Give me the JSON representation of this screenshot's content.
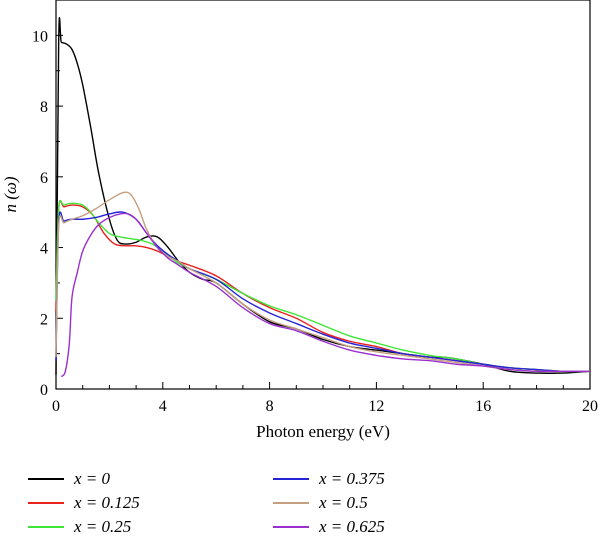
{
  "chart_data": {
    "type": "line",
    "xlabel": "Photon energy (eV)",
    "ylabel": "n (ω)",
    "xlim": [
      0,
      20
    ],
    "ylim": [
      0,
      11
    ],
    "xticks": [
      "0",
      "4",
      "8",
      "12",
      "16",
      "20"
    ],
    "yticks": [
      "0",
      "2",
      "4",
      "6",
      "8",
      "10"
    ],
    "legend_placement": "bottom",
    "series": [
      {
        "name": "x = 0",
        "color": "#000000",
        "x": [
          0,
          0.1,
          0.2,
          0.4,
          0.6,
          0.8,
          1.0,
          1.3,
          1.6,
          2.0,
          2.3,
          2.6,
          3.0,
          3.4,
          3.8,
          4.2,
          4.6,
          5.0,
          5.5,
          6.0,
          7.0,
          8.0,
          9.0,
          10,
          11,
          12,
          13,
          14,
          14.5,
          15,
          16,
          17,
          18,
          19,
          20
        ],
        "y": [
          0.4,
          9.8,
          9.8,
          9.75,
          9.6,
          9.2,
          8.6,
          7.4,
          6.1,
          4.8,
          4.2,
          4.1,
          4.15,
          4.3,
          4.3,
          4.0,
          3.6,
          3.3,
          3.1,
          3.0,
          2.4,
          1.9,
          1.7,
          1.4,
          1.2,
          1.1,
          1.0,
          0.9,
          0.9,
          0.85,
          0.7,
          0.5,
          0.45,
          0.45,
          0.5
        ]
      },
      {
        "name": "x = 0.125",
        "color": "#e8211f",
        "x": [
          0,
          0.1,
          0.3,
          0.6,
          1.0,
          1.4,
          1.8,
          2.2,
          2.6,
          3.0,
          3.4,
          3.8,
          4.2,
          4.6,
          5.0,
          6.0,
          7.0,
          8.0,
          9.0,
          10,
          11,
          12,
          13,
          14,
          15,
          16,
          17,
          18,
          19,
          20
        ],
        "y": [
          2.2,
          5.1,
          5.15,
          5.2,
          5.15,
          4.9,
          4.4,
          4.1,
          4.05,
          4.05,
          4.0,
          3.9,
          3.75,
          3.6,
          3.5,
          3.2,
          2.7,
          2.3,
          2.0,
          1.6,
          1.35,
          1.2,
          1.0,
          0.9,
          0.8,
          0.7,
          0.6,
          0.55,
          0.5,
          0.5
        ]
      },
      {
        "name": "x = 0.25",
        "color": "#3ee635",
        "x": [
          0,
          0.1,
          0.3,
          0.6,
          1.0,
          1.3,
          1.6,
          2.0,
          2.4,
          2.8,
          3.2,
          3.6,
          4.0,
          4.5,
          5.0,
          6.0,
          7.0,
          8.0,
          9.0,
          10,
          11,
          12,
          13,
          14,
          15,
          16,
          17,
          18,
          19,
          20
        ],
        "y": [
          2.5,
          5.1,
          5.2,
          5.25,
          5.2,
          5.0,
          4.7,
          4.4,
          4.3,
          4.25,
          4.2,
          4.1,
          3.9,
          3.6,
          3.4,
          3.1,
          2.7,
          2.35,
          2.1,
          1.8,
          1.5,
          1.3,
          1.1,
          0.95,
          0.85,
          0.7,
          0.6,
          0.55,
          0.5,
          0.5
        ]
      },
      {
        "name": "x = 0.375",
        "color": "#2523d6",
        "x": [
          0,
          0.1,
          0.3,
          0.6,
          1.0,
          1.5,
          2.0,
          2.5,
          3.0,
          3.4,
          3.8,
          4.2,
          4.6,
          5.0,
          6.0,
          7.0,
          8.0,
          9.0,
          10,
          11,
          12,
          13,
          14,
          15,
          16,
          17,
          18,
          19,
          20
        ],
        "y": [
          0.8,
          4.7,
          4.75,
          4.8,
          4.8,
          4.85,
          4.95,
          5.0,
          4.8,
          4.4,
          4.05,
          3.8,
          3.6,
          3.4,
          3.1,
          2.55,
          2.15,
          1.85,
          1.55,
          1.3,
          1.15,
          1.0,
          0.9,
          0.8,
          0.7,
          0.6,
          0.55,
          0.5,
          0.5
        ]
      },
      {
        "name": "x = 0.5",
        "color": "#c4a080",
        "x": [
          0,
          0.1,
          0.3,
          0.6,
          1.0,
          1.5,
          2.0,
          2.5,
          2.8,
          3.1,
          3.4,
          3.8,
          4.2,
          4.6,
          5.0,
          6.0,
          7.0,
          8.0,
          9.0,
          10,
          11,
          12,
          13,
          14,
          15,
          16,
          17,
          18,
          19,
          20
        ],
        "y": [
          0.9,
          4.6,
          4.7,
          4.8,
          4.9,
          5.1,
          5.35,
          5.55,
          5.5,
          5.1,
          4.5,
          4.0,
          3.75,
          3.6,
          3.4,
          3.0,
          2.4,
          1.95,
          1.7,
          1.45,
          1.2,
          1.05,
          0.95,
          0.85,
          0.75,
          0.65,
          0.55,
          0.5,
          0.5,
          0.5
        ]
      },
      {
        "name": "x = 0.625",
        "color": "#9b2fd0",
        "x": [
          0.2,
          0.35,
          0.5,
          0.6,
          0.8,
          1.0,
          1.3,
          1.6,
          2.0,
          2.4,
          2.7,
          3.0,
          3.4,
          3.8,
          4.2,
          4.6,
          5.0,
          6.0,
          7.0,
          8.0,
          9.0,
          10,
          11,
          12,
          13,
          14,
          15,
          16,
          17,
          18,
          19,
          20
        ],
        "y": [
          0.35,
          0.5,
          1.3,
          2.6,
          3.3,
          3.9,
          4.35,
          4.65,
          4.85,
          4.95,
          4.95,
          4.8,
          4.4,
          4.0,
          3.7,
          3.5,
          3.3,
          2.9,
          2.3,
          1.85,
          1.65,
          1.35,
          1.1,
          0.95,
          0.85,
          0.8,
          0.7,
          0.65,
          0.55,
          0.5,
          0.5,
          0.5
        ]
      }
    ]
  }
}
